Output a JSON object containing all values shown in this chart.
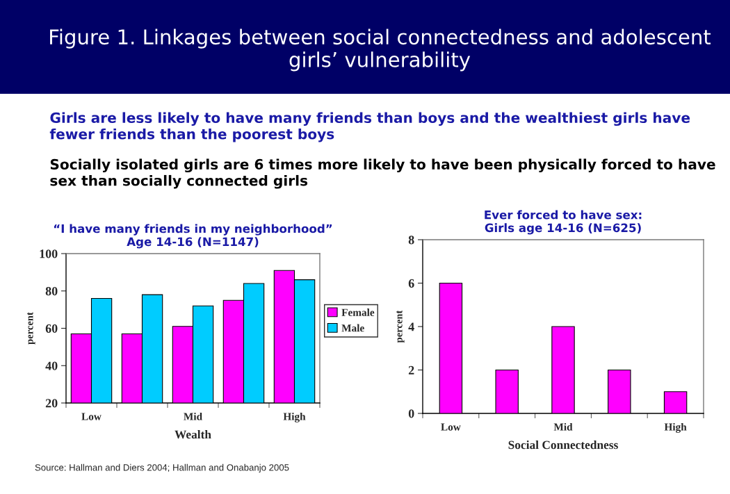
{
  "chart_data": [
    {
      "type": "other",
      "title": "Figure 1. Linkages between social connectedness and adolescent girls’ vulnerability",
      "annotations": [
        "Girls are less likely to have many friends than boys and the wealthiest girls have fewer friends than the poorest boys",
        "Socially isolated girls are 6 times more likely to have been physically forced to have sex than socially connected girls"
      ]
    },
    {
      "type": "bar",
      "title": "“I have many friends in my neighborhood”",
      "subtitle": "Age 14-16 (N=1147)",
      "xlabel": "Wealth",
      "ylabel": "percent",
      "categories": [
        "Low",
        null,
        "Mid",
        null,
        "High"
      ],
      "series": [
        {
          "name": "Female",
          "color": "#ff00ff",
          "values": [
            57,
            57,
            61,
            75,
            91
          ]
        },
        {
          "name": "Male",
          "color": "#00ccff",
          "values": [
            76,
            78,
            72,
            84,
            86
          ]
        }
      ],
      "ylim": [
        20,
        100
      ],
      "yticks": [
        20,
        40,
        60,
        80,
        100
      ],
      "grid": false,
      "legend": "right",
      "annotations": [
        "Source: Hallman and Diers 2004; Hallman and Onabanjo 2005"
      ]
    },
    {
      "type": "bar",
      "title": "Ever forced to have sex:",
      "subtitle": "Girls age 14-16 (N=625)",
      "xlabel": "Social Connectedness",
      "ylabel": "percent",
      "categories": [
        "Low",
        null,
        "Mid",
        null,
        "High"
      ],
      "series": [
        {
          "color": "#ff00ff",
          "values": [
            6,
            2,
            4,
            2,
            1
          ]
        }
      ],
      "ylim": [
        0,
        8
      ],
      "yticks": [
        0,
        2,
        4,
        6,
        8
      ],
      "grid": false
    }
  ]
}
